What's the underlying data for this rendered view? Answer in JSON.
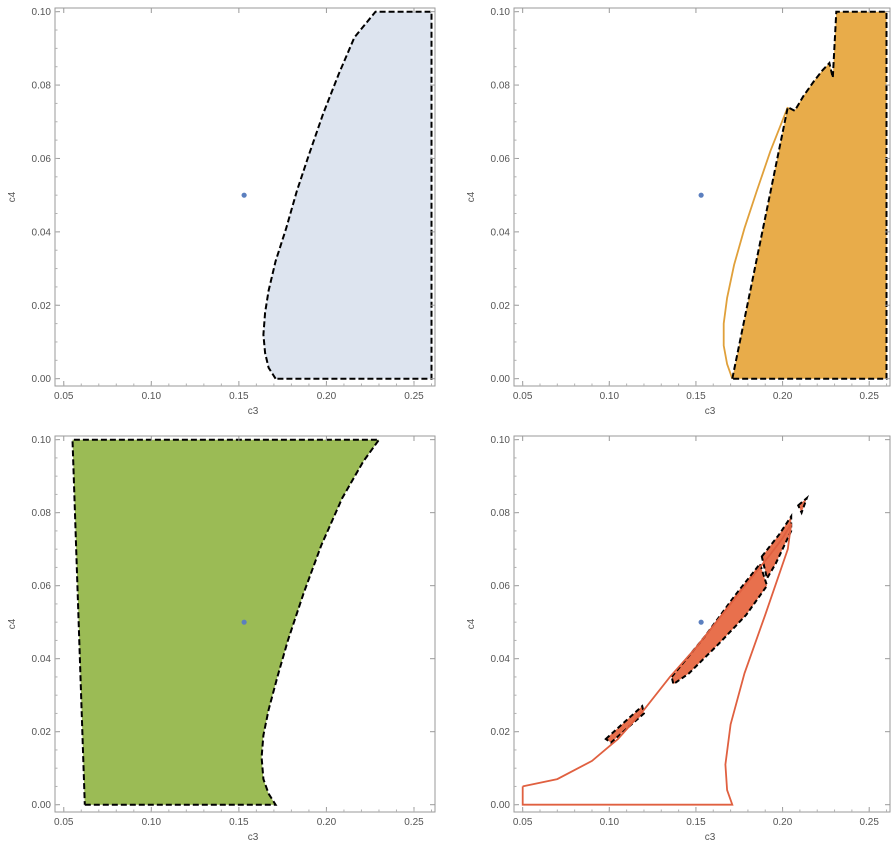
{
  "chart_data": [
    {
      "type": "region",
      "xlabel": "c3",
      "ylabel": "c4",
      "xlim": [
        0.045,
        0.262
      ],
      "ylim": [
        -0.002,
        0.101
      ],
      "xticks": [
        "0.05",
        "0.10",
        "0.15",
        "0.20",
        "0.25"
      ],
      "yticks": [
        "0.00",
        "0.02",
        "0.04",
        "0.06",
        "0.08",
        "0.10"
      ],
      "fill_color": "#dde4ef",
      "curve_color": "#000000",
      "point": {
        "c3": 0.153,
        "c4": 0.05,
        "color": "#5b7fbf"
      },
      "region_boundary": [
        [
          0.171,
          0.0
        ],
        [
          0.167,
          0.003
        ],
        [
          0.165,
          0.007
        ],
        [
          0.164,
          0.012
        ],
        [
          0.165,
          0.018
        ],
        [
          0.167,
          0.024
        ],
        [
          0.171,
          0.032
        ],
        [
          0.177,
          0.041
        ],
        [
          0.183,
          0.051
        ],
        [
          0.19,
          0.061
        ],
        [
          0.198,
          0.072
        ],
        [
          0.207,
          0.083
        ],
        [
          0.216,
          0.093
        ],
        [
          0.228,
          0.1
        ],
        [
          0.26,
          0.1
        ],
        [
          0.26,
          0.0
        ],
        [
          0.171,
          0.0
        ]
      ]
    },
    {
      "type": "region",
      "xlabel": "c3",
      "ylabel": "c4",
      "xlim": [
        0.045,
        0.262
      ],
      "ylim": [
        -0.002,
        0.101
      ],
      "xticks": [
        "0.05",
        "0.10",
        "0.15",
        "0.20",
        "0.25"
      ],
      "yticks": [
        "0.00",
        "0.02",
        "0.04",
        "0.06",
        "0.08",
        "0.10"
      ],
      "fill_color": "#e8ac4a",
      "curve_color": "#e0a03a",
      "point": {
        "c3": 0.153,
        "c4": 0.05,
        "color": "#5b7fbf"
      },
      "region_boundary": [
        [
          0.171,
          0.0
        ],
        [
          0.203,
          0.074
        ],
        [
          0.207,
          0.073
        ],
        [
          0.212,
          0.077
        ],
        [
          0.218,
          0.081
        ],
        [
          0.223,
          0.084
        ],
        [
          0.227,
          0.086
        ],
        [
          0.229,
          0.082
        ],
        [
          0.231,
          0.1
        ],
        [
          0.26,
          0.1
        ],
        [
          0.26,
          0.0
        ],
        [
          0.171,
          0.0
        ]
      ],
      "curve": [
        [
          0.171,
          0.0
        ],
        [
          0.168,
          0.004
        ],
        [
          0.166,
          0.009
        ],
        [
          0.166,
          0.015
        ],
        [
          0.168,
          0.022
        ],
        [
          0.172,
          0.031
        ],
        [
          0.178,
          0.041
        ],
        [
          0.185,
          0.051
        ],
        [
          0.193,
          0.062
        ],
        [
          0.203,
          0.074
        ]
      ]
    },
    {
      "type": "region",
      "xlabel": "c3",
      "ylabel": "c4",
      "xlim": [
        0.045,
        0.262
      ],
      "ylim": [
        -0.002,
        0.101
      ],
      "xticks": [
        "0.05",
        "0.10",
        "0.15",
        "0.20",
        "0.25"
      ],
      "yticks": [
        "0.00",
        "0.02",
        "0.04",
        "0.06",
        "0.08",
        "0.10"
      ],
      "fill_color": "#9bbb55",
      "curve_color": "#000000",
      "point": {
        "c3": 0.153,
        "c4": 0.05,
        "color": "#5b7fbf"
      },
      "region_boundary": [
        [
          0.062,
          0.0
        ],
        [
          0.171,
          0.0
        ],
        [
          0.167,
          0.003
        ],
        [
          0.164,
          0.007
        ],
        [
          0.163,
          0.013
        ],
        [
          0.164,
          0.019
        ],
        [
          0.167,
          0.026
        ],
        [
          0.172,
          0.035
        ],
        [
          0.178,
          0.045
        ],
        [
          0.187,
          0.058
        ],
        [
          0.197,
          0.071
        ],
        [
          0.209,
          0.084
        ],
        [
          0.221,
          0.094
        ],
        [
          0.23,
          0.1
        ],
        [
          0.055,
          0.1
        ],
        [
          0.062,
          0.0
        ]
      ]
    },
    {
      "type": "region",
      "xlabel": "c3",
      "ylabel": "c4",
      "xlim": [
        0.045,
        0.262
      ],
      "ylim": [
        -0.002,
        0.101
      ],
      "xticks": [
        "0.05",
        "0.10",
        "0.15",
        "0.20",
        "0.25"
      ],
      "yticks": [
        "0.00",
        "0.02",
        "0.04",
        "0.06",
        "0.08",
        "0.10"
      ],
      "fill_color": "#e8704d",
      "curve_color": "#e06040",
      "point": {
        "c3": 0.153,
        "c4": 0.05,
        "color": "#5b7fbf"
      },
      "curve": [
        [
          0.05,
          0.005
        ],
        [
          0.07,
          0.007
        ],
        [
          0.09,
          0.012
        ],
        [
          0.105,
          0.018
        ],
        [
          0.12,
          0.026
        ],
        [
          0.135,
          0.035
        ],
        [
          0.15,
          0.043
        ],
        [
          0.165,
          0.052
        ],
        [
          0.18,
          0.061
        ],
        [
          0.192,
          0.068
        ],
        [
          0.2,
          0.073
        ],
        [
          0.205,
          0.077
        ],
        [
          0.203,
          0.07
        ],
        [
          0.19,
          0.052
        ],
        [
          0.178,
          0.036
        ],
        [
          0.17,
          0.022
        ],
        [
          0.167,
          0.011
        ],
        [
          0.168,
          0.004
        ],
        [
          0.171,
          0.0
        ],
        [
          0.05,
          0.0
        ],
        [
          0.05,
          0.005
        ]
      ],
      "patches": [
        [
          [
            0.098,
            0.018
          ],
          [
            0.119,
            0.027
          ],
          [
            0.12,
            0.025
          ],
          [
            0.101,
            0.017
          ]
        ],
        [
          [
            0.136,
            0.035
          ],
          [
            0.155,
            0.046
          ],
          [
            0.172,
            0.057
          ],
          [
            0.187,
            0.066
          ],
          [
            0.191,
            0.06
          ],
          [
            0.179,
            0.052
          ],
          [
            0.163,
            0.044
          ],
          [
            0.146,
            0.036
          ],
          [
            0.137,
            0.033
          ]
        ],
        [
          [
            0.188,
            0.068
          ],
          [
            0.198,
            0.074
          ],
          [
            0.205,
            0.079
          ],
          [
            0.205,
            0.075
          ],
          [
            0.196,
            0.066
          ],
          [
            0.191,
            0.062
          ]
        ],
        [
          [
            0.209,
            0.082
          ],
          [
            0.214,
            0.084
          ],
          [
            0.211,
            0.08
          ]
        ]
      ]
    }
  ]
}
